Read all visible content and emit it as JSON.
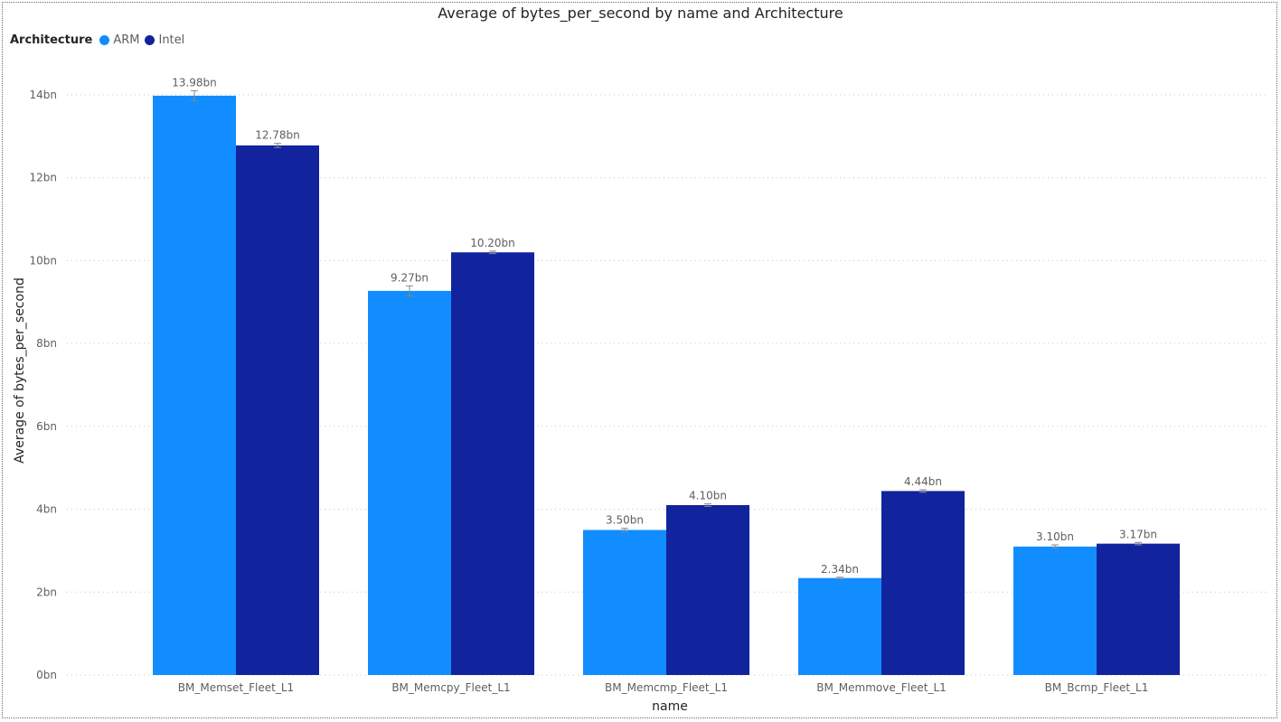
{
  "chart_data": {
    "type": "bar",
    "title": "Average of bytes_per_second by name and Architecture",
    "xlabel": "name",
    "ylabel": "Average of bytes_per_second",
    "legend_title": "Architecture",
    "legend_position": "top-left",
    "categories": [
      "BM_Memset_Fleet_L1",
      "BM_Memcpy_Fleet_L1",
      "BM_Memcmp_Fleet_L1",
      "BM_Memmove_Fleet_L1",
      "BM_Bcmp_Fleet_L1"
    ],
    "series": [
      {
        "name": "ARM",
        "color": "#118dff",
        "values": [
          13.98,
          9.27,
          3.5,
          2.34,
          3.1
        ],
        "labels": [
          "13.98bn",
          "9.27bn",
          "3.50bn",
          "2.34bn",
          "3.10bn"
        ],
        "error": [
          0.12,
          0.12,
          0.04,
          0.02,
          0.04
        ]
      },
      {
        "name": "Intel",
        "color": "#12239e",
        "values": [
          12.78,
          10.2,
          4.1,
          4.44,
          3.17
        ],
        "labels": [
          "12.78bn",
          "10.20bn",
          "4.10bn",
          "4.44bn",
          "3.17bn"
        ],
        "error": [
          0.05,
          0.03,
          0.03,
          0.03,
          0.03
        ]
      }
    ],
    "ylim": [
      0,
      14
    ],
    "yticks": [
      0,
      2,
      4,
      6,
      8,
      10,
      12,
      14
    ],
    "ytick_labels": [
      "0bn",
      "2bn",
      "4bn",
      "6bn",
      "8bn",
      "10bn",
      "12bn",
      "14bn"
    ],
    "grid": true
  }
}
